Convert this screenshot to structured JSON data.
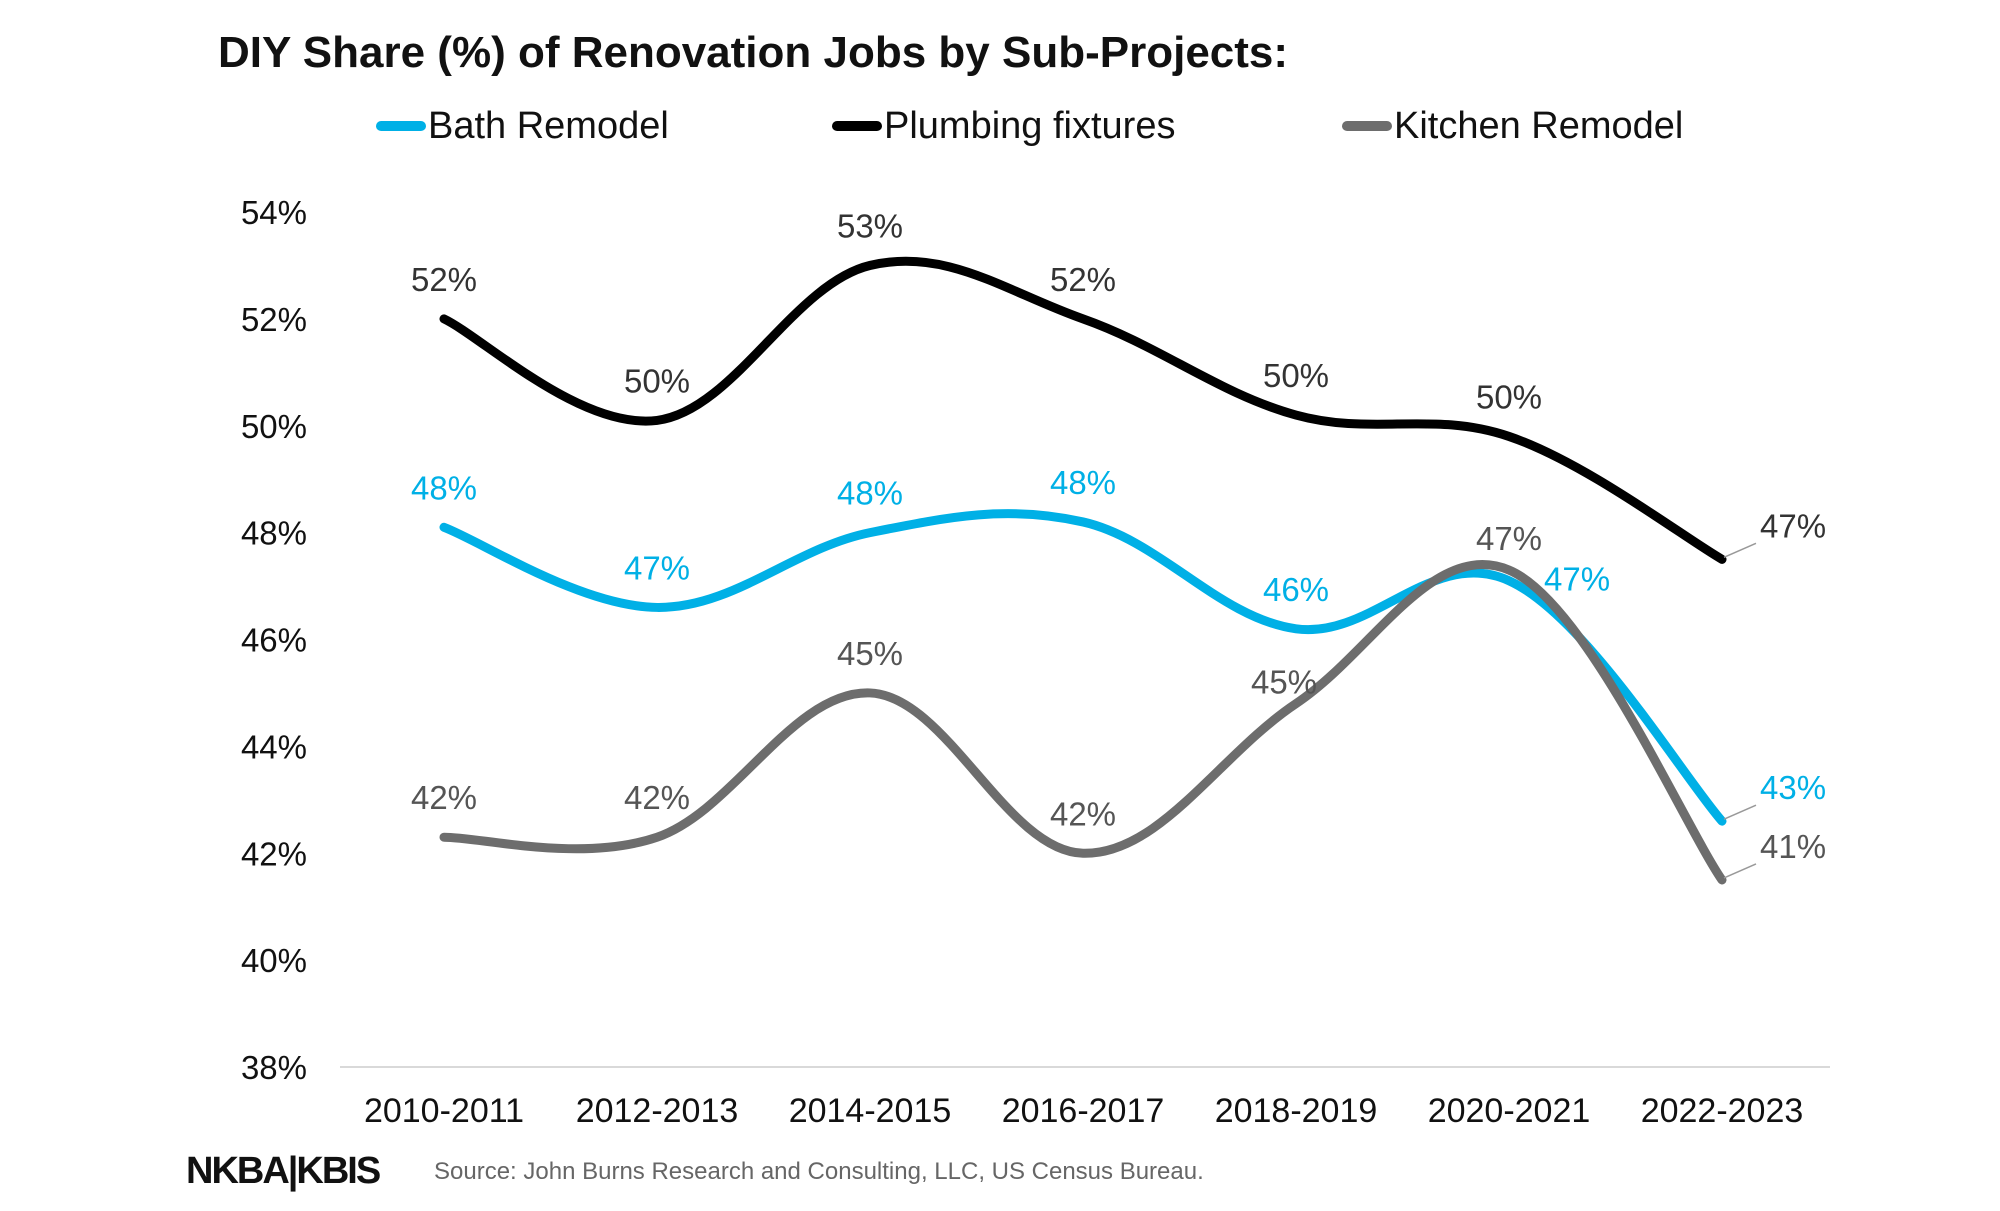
{
  "brand": {
    "logo_text": "NKBA|KBIS"
  },
  "source_note": "Source: John Burns Research and Consulting, LLC, US Census Bureau.",
  "chart_data": {
    "type": "line",
    "title": "DIY Share (%) of Renovation Jobs by Sub-Projects:",
    "xlabel": "",
    "ylabel": "",
    "ylim": [
      38,
      54
    ],
    "yticks": [
      38,
      40,
      42,
      44,
      46,
      48,
      50,
      52,
      54
    ],
    "ytick_suffix": "%",
    "grid": false,
    "legend_position": "top",
    "categories": [
      "2010-2011",
      "2012-2013",
      "2014-2015",
      "2016-2017",
      "2018-2019",
      "2020-2021",
      "2022-2023"
    ],
    "series": [
      {
        "name": "Bath Remodel",
        "color": "#00b0e6",
        "values": [
          48.1,
          46.6,
          48.0,
          48.2,
          46.2,
          47.1,
          42.6
        ],
        "labels": [
          "48%",
          "47%",
          "48%",
          "48%",
          "46%",
          "47%",
          "43%"
        ]
      },
      {
        "name": "Plumbing fixtures",
        "color": "#000000",
        "values": [
          52.0,
          50.1,
          53.0,
          52.0,
          50.2,
          49.8,
          47.5
        ],
        "labels": [
          "52%",
          "50%",
          "53%",
          "52%",
          "50%",
          "50%",
          "47%"
        ]
      },
      {
        "name": "Kitchen Remodel",
        "color": "#6d6d6d",
        "values": [
          42.3,
          42.3,
          45.0,
          42.0,
          44.8,
          47.3,
          41.5
        ],
        "labels": [
          "42%",
          "42%",
          "45%",
          "42%",
          "45%",
          "47%",
          "41%"
        ]
      }
    ]
  }
}
